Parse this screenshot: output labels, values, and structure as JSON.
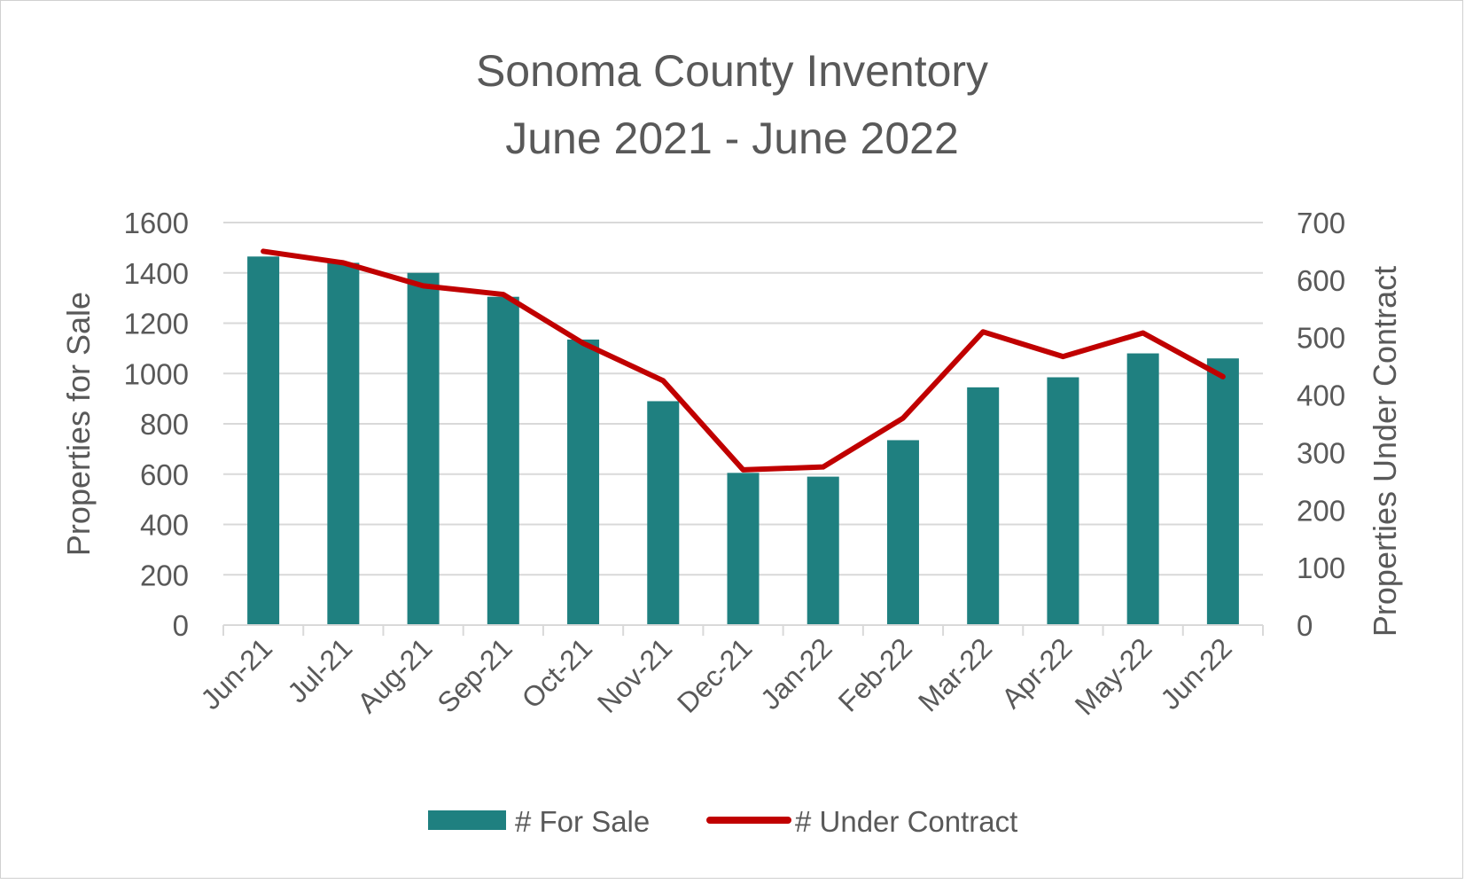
{
  "chart_data": {
    "type": "bar",
    "title": "Sonoma County Inventory",
    "subtitle": "June 2021 - June 2022",
    "categories": [
      "Jun-21",
      "Jul-21",
      "Aug-21",
      "Sep-21",
      "Oct-21",
      "Nov-21",
      "Dec-21",
      "Jan-22",
      "Feb-22",
      "Mar-22",
      "Apr-22",
      "May-22",
      "Jun-22"
    ],
    "series": [
      {
        "name": "# For Sale",
        "type": "bar",
        "axis": "left",
        "color": "#1f8080",
        "values": [
          1465,
          1440,
          1400,
          1305,
          1135,
          890,
          605,
          590,
          735,
          945,
          985,
          1080,
          1060
        ]
      },
      {
        "name": "# Under Contract",
        "type": "line",
        "axis": "right",
        "color": "#c00000",
        "values": [
          650,
          630,
          590,
          575,
          490,
          425,
          270,
          275,
          360,
          510,
          467,
          508,
          432
        ]
      }
    ],
    "y_left": {
      "label": "Properties for Sale",
      "min": 0,
      "max": 1600,
      "ticks": [
        0,
        200,
        400,
        600,
        800,
        1000,
        1200,
        1400,
        1600
      ]
    },
    "y_right": {
      "label": "Properties Under Contract",
      "min": 0,
      "max": 700,
      "ticks": [
        0,
        100,
        200,
        300,
        400,
        500,
        600,
        700
      ]
    },
    "grid": true,
    "legend": "bottom"
  }
}
